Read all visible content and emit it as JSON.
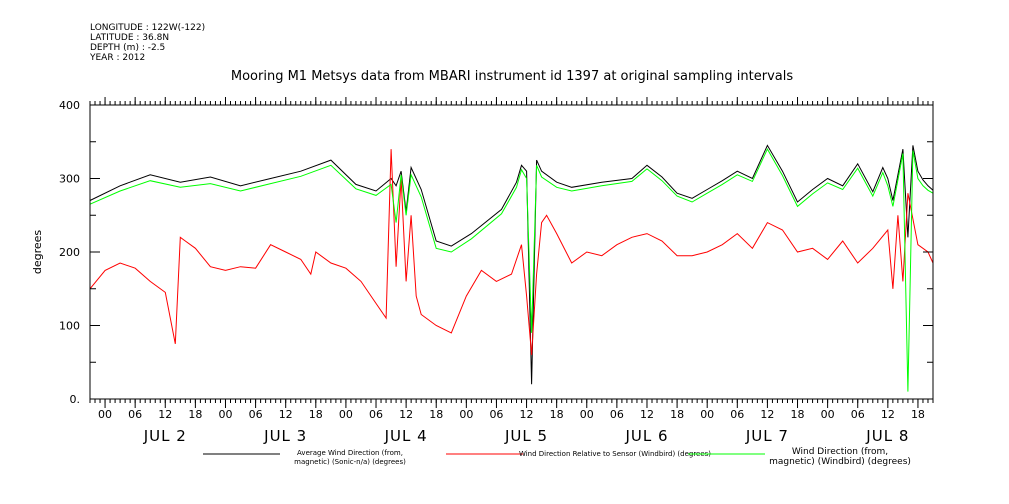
{
  "header": {
    "longitude": "LONGITUDE : 122W(-122)",
    "latitude": "LATITUDE : 36.8N",
    "depth": "DEPTH (m) : -2.5",
    "year": "YEAR : 2012"
  },
  "chart_data": {
    "type": "line",
    "title": "Mooring M1 Metsys data from MBARI instrument id 1397 at original sampling intervals",
    "ylabel": "degrees",
    "ylim": [
      0,
      400
    ],
    "y_ticks": [
      "400",
      "300",
      "200",
      "100",
      "0."
    ],
    "x_unit": "hour since 2012-07-01 21:00",
    "xlim": [
      0,
      168
    ],
    "x_tick_labels": [
      "00",
      "06",
      "12",
      "18",
      "00",
      "06",
      "12",
      "18",
      "00",
      "06",
      "12",
      "18",
      "00",
      "06",
      "12",
      "18",
      "00",
      "06",
      "12",
      "18",
      "00",
      "06",
      "12",
      "18",
      "00",
      "06",
      "12",
      "18"
    ],
    "day_labels": [
      "JUL 2",
      "JUL 3",
      "JUL 4",
      "JUL 5",
      "JUL 6",
      "JUL 7",
      "JUL 8"
    ],
    "grid": false,
    "legend_position": "bottom",
    "series": [
      {
        "name": "Average Wind Direction (from, magnetic) (Sonic-n/a) (degrees)",
        "color": "#000000",
        "x": [
          0,
          6,
          12,
          18,
          24,
          30,
          36,
          42,
          48,
          53,
          57,
          60,
          61,
          62,
          63,
          64,
          66,
          69,
          72,
          76,
          82,
          85,
          86,
          87,
          88,
          89,
          90,
          93,
          96,
          102,
          108,
          111,
          114,
          117,
          120,
          123,
          126,
          129,
          132,
          135,
          138,
          141,
          144,
          147,
          150,
          153,
          156,
          158,
          159,
          160,
          162,
          163,
          164,
          165,
          166,
          167,
          168
        ],
        "values": [
          270,
          290,
          305,
          295,
          302,
          290,
          300,
          310,
          325,
          292,
          283,
          300,
          290,
          310,
          255,
          315,
          285,
          215,
          208,
          225,
          258,
          295,
          318,
          310,
          20,
          325,
          310,
          295,
          288,
          295,
          300,
          318,
          302,
          280,
          273,
          285,
          297,
          310,
          300,
          345,
          310,
          268,
          285,
          300,
          290,
          320,
          282,
          315,
          300,
          270,
          340,
          220,
          345,
          310,
          298,
          290,
          284
        ]
      },
      {
        "name": "Wind Direction Relative to Sensor (Windbird) (degrees)",
        "color": "#ff0000",
        "x": [
          0,
          3,
          6,
          9,
          12,
          15,
          17,
          18,
          19,
          21,
          24,
          27,
          30,
          33,
          36,
          39,
          42,
          44,
          45,
          48,
          51,
          54,
          57,
          59,
          60,
          61,
          62,
          63,
          64,
          65,
          66,
          69,
          72,
          75,
          78,
          81,
          84,
          86,
          87,
          88,
          89,
          90,
          91,
          93,
          96,
          99,
          102,
          105,
          108,
          111,
          114,
          117,
          120,
          123,
          126,
          129,
          132,
          135,
          138,
          141,
          144,
          147,
          150,
          153,
          156,
          159,
          160,
          161,
          162,
          163,
          165,
          167,
          168
        ],
        "values": [
          150,
          175,
          185,
          178,
          160,
          145,
          75,
          220,
          215,
          205,
          180,
          175,
          180,
          178,
          210,
          200,
          190,
          170,
          200,
          185,
          178,
          160,
          130,
          110,
          340,
          180,
          300,
          160,
          250,
          140,
          115,
          100,
          90,
          140,
          175,
          160,
          170,
          210,
          140,
          60,
          170,
          240,
          250,
          225,
          185,
          200,
          195,
          210,
          220,
          225,
          215,
          195,
          195,
          200,
          210,
          225,
          205,
          240,
          230,
          200,
          205,
          190,
          215,
          185,
          205,
          230,
          150,
          250,
          160,
          280,
          210,
          200,
          185
        ]
      },
      {
        "name": "Wind Direction (from, magnetic) (Windbird) (degrees)",
        "color": "#00ff00",
        "x": [
          0,
          6,
          12,
          18,
          24,
          30,
          36,
          42,
          48,
          53,
          57,
          60,
          61,
          62,
          63,
          64,
          66,
          69,
          72,
          76,
          82,
          85,
          86,
          87,
          88,
          89,
          90,
          93,
          96,
          102,
          108,
          111,
          114,
          117,
          120,
          123,
          126,
          129,
          132,
          135,
          138,
          141,
          144,
          147,
          150,
          153,
          156,
          158,
          159,
          160,
          162,
          163,
          164,
          165,
          166,
          167,
          168
        ],
        "values": [
          265,
          283,
          297,
          288,
          293,
          283,
          293,
          303,
          318,
          286,
          277,
          292,
          240,
          305,
          250,
          305,
          275,
          205,
          200,
          218,
          252,
          288,
          312,
          300,
          90,
          318,
          302,
          288,
          283,
          290,
          296,
          313,
          297,
          276,
          268,
          280,
          292,
          305,
          296,
          340,
          304,
          262,
          279,
          294,
          285,
          314,
          276,
          308,
          290,
          262,
          334,
          10,
          338,
          300,
          290,
          284,
          280
        ]
      }
    ]
  }
}
